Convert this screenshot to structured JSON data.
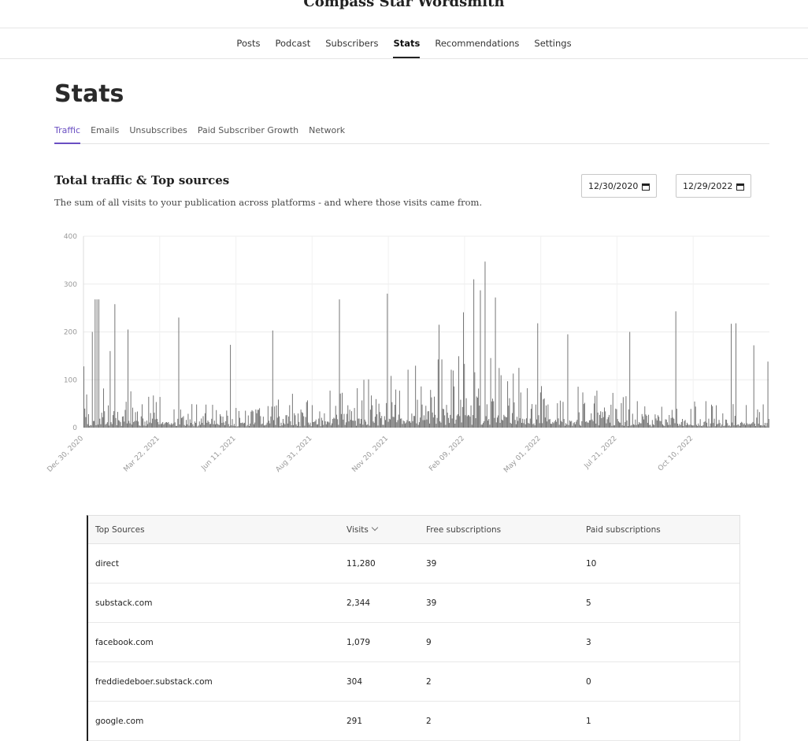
{
  "publication": {
    "title": "Compass Star Wordsmith"
  },
  "nav": [
    {
      "label": "Posts",
      "active": false
    },
    {
      "label": "Podcast",
      "active": false
    },
    {
      "label": "Subscribers",
      "active": false
    },
    {
      "label": "Stats",
      "active": true
    },
    {
      "label": "Recommendations",
      "active": false
    },
    {
      "label": "Settings",
      "active": false
    }
  ],
  "page": {
    "title": "Stats"
  },
  "subtabs": [
    {
      "label": "Traffic",
      "active": true
    },
    {
      "label": "Emails",
      "active": false
    },
    {
      "label": "Unsubscribes",
      "active": false
    },
    {
      "label": "Paid Subscriber Growth",
      "active": false
    },
    {
      "label": "Network",
      "active": false
    }
  ],
  "section": {
    "title": "Total traffic & Top sources",
    "description": "The sum of all visits to your publication across platforms - and where those visits came from."
  },
  "date_range": {
    "start": "12/30/2020",
    "end": "12/29/2022"
  },
  "icons": {
    "calendar": "calendar-icon",
    "sort": "chevron-down-icon"
  },
  "colors": {
    "accent": "#6a4fc2",
    "bars": "#6f6f6f",
    "grid": "#ececec"
  },
  "chart_data": {
    "type": "bar",
    "ylim": [
      0,
      400
    ],
    "yticks": [
      0,
      100,
      200,
      300,
      400
    ],
    "xtick_labels": [
      "Dec 30, 2020",
      "Mar 22, 2021",
      "Jun 11, 2021",
      "Aug 31, 2021",
      "Nov 20, 2021",
      "Feb 09, 2022",
      "May 01, 2022",
      "Jul 21, 2022",
      "Oct 10, 2022"
    ],
    "x_start": "2020-12-30",
    "x_end": "2022-12-29",
    "grid": true,
    "spikes": [
      {
        "date": "2020-12-30",
        "value": 128
      },
      {
        "date": "2021-01-08",
        "value": 200
      },
      {
        "date": "2021-01-11",
        "value": 268
      },
      {
        "date": "2021-01-13",
        "value": 268
      },
      {
        "date": "2021-01-15",
        "value": 268
      },
      {
        "date": "2021-01-27",
        "value": 160
      },
      {
        "date": "2021-02-01",
        "value": 258
      },
      {
        "date": "2021-02-15",
        "value": 205
      },
      {
        "date": "2021-04-10",
        "value": 230
      },
      {
        "date": "2021-06-04",
        "value": 173
      },
      {
        "date": "2021-07-19",
        "value": 203
      },
      {
        "date": "2021-09-28",
        "value": 268
      },
      {
        "date": "2021-11-18",
        "value": 280
      },
      {
        "date": "2022-01-12",
        "value": 215
      },
      {
        "date": "2022-02-07",
        "value": 241
      },
      {
        "date": "2022-02-18",
        "value": 310
      },
      {
        "date": "2022-02-25",
        "value": 287
      },
      {
        "date": "2022-03-02",
        "value": 347
      },
      {
        "date": "2022-03-13",
        "value": 272
      },
      {
        "date": "2022-04-27",
        "value": 218
      },
      {
        "date": "2022-05-29",
        "value": 195
      },
      {
        "date": "2022-08-03",
        "value": 200
      },
      {
        "date": "2022-09-21",
        "value": 243
      },
      {
        "date": "2022-11-19",
        "value": 217
      },
      {
        "date": "2022-11-24",
        "value": 218
      },
      {
        "date": "2022-12-13",
        "value": 172
      },
      {
        "date": "2022-12-28",
        "value": 138
      }
    ]
  },
  "table": {
    "columns": [
      "Top Sources",
      "Visits",
      "Free subscriptions",
      "Paid subscriptions"
    ],
    "rows": [
      [
        "direct",
        "11,280",
        "39",
        "10"
      ],
      [
        "substack.com",
        "2,344",
        "39",
        "5"
      ],
      [
        "facebook.com",
        "1,079",
        "9",
        "3"
      ],
      [
        "freddiedeboer.substack.com",
        "304",
        "2",
        "0"
      ],
      [
        "google.com",
        "291",
        "2",
        "1"
      ]
    ]
  }
}
